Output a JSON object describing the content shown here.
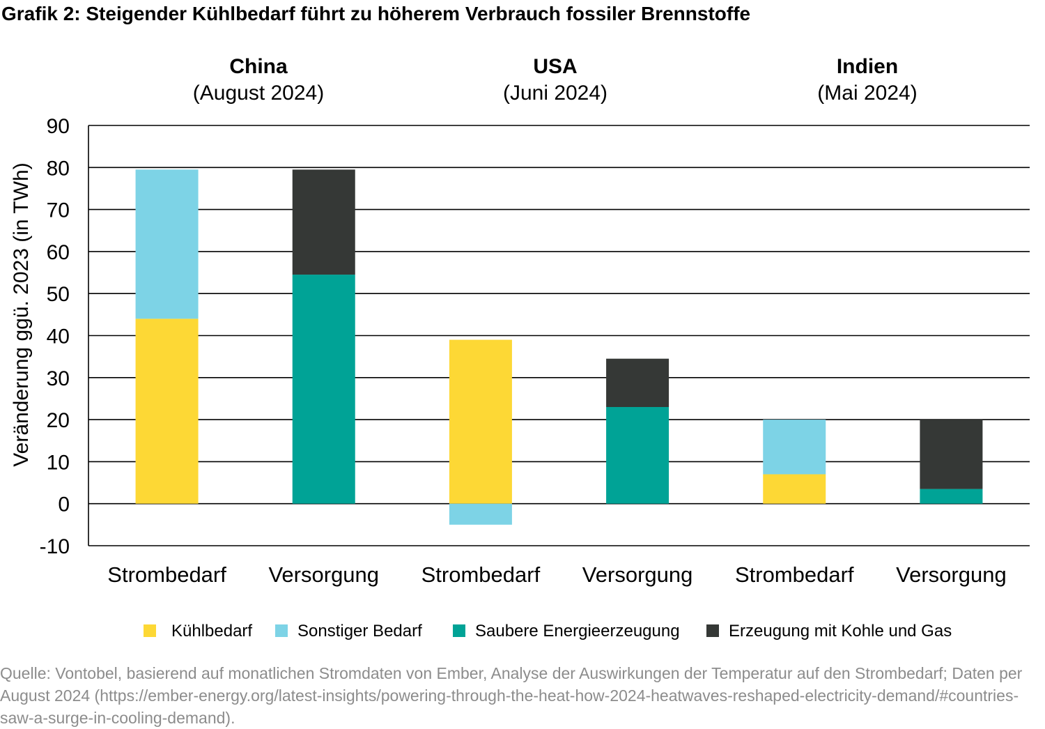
{
  "chart_data": {
    "type": "bar",
    "stacked": true,
    "title": "Grafik 2: Steigender Kühlbedarf führt zu höherem Verbrauch fossiler Brennstoffe",
    "ylabel": "Veränderung ggü. 2023 (in TWh)",
    "xlabel": "",
    "ylim": [
      -10,
      90
    ],
    "yticks": [
      90,
      80,
      70,
      60,
      50,
      40,
      30,
      20,
      10,
      0,
      -10
    ],
    "grid": true,
    "legend_placement": "bottom",
    "groups": [
      {
        "name": "China",
        "period": "(August 2024)"
      },
      {
        "name": "USA",
        "period": "(Juni 2024)"
      },
      {
        "name": "Indien",
        "period": "(Mai 2024)"
      }
    ],
    "categories": [
      "Strombedarf",
      "Versorgung",
      "Strombedarf",
      "Versorgung",
      "Strombedarf",
      "Versorgung"
    ],
    "series": [
      {
        "name": "Kühlbedarf",
        "color": "#fdd835",
        "values": [
          44,
          0,
          39,
          0,
          7,
          0
        ]
      },
      {
        "name": "Sonstiger Bedarf",
        "color": "#7dd3e6",
        "values": [
          35.5,
          0,
          -5,
          0,
          13,
          0
        ]
      },
      {
        "name": "Saubere Energieerzeugung",
        "color": "#00a396",
        "values": [
          0,
          54.5,
          0,
          23,
          0,
          3.5
        ]
      },
      {
        "name": "Erzeugung mit Kohle und Gas",
        "color": "#353836",
        "values": [
          0,
          25,
          0,
          11.5,
          0,
          16.5
        ]
      }
    ]
  },
  "source": "Quelle: Vontobel, basierend auf monatlichen Stromdaten von Ember, Analyse der Auswirkungen der Temperatur auf den Strombedarf; Daten per August 2024 (https://ember-energy.org/latest-insights/powering-through-the-heat-how-2024-heatwaves-reshaped-electricity-demand/#countries-saw-a-surge-in-cooling-demand)."
}
